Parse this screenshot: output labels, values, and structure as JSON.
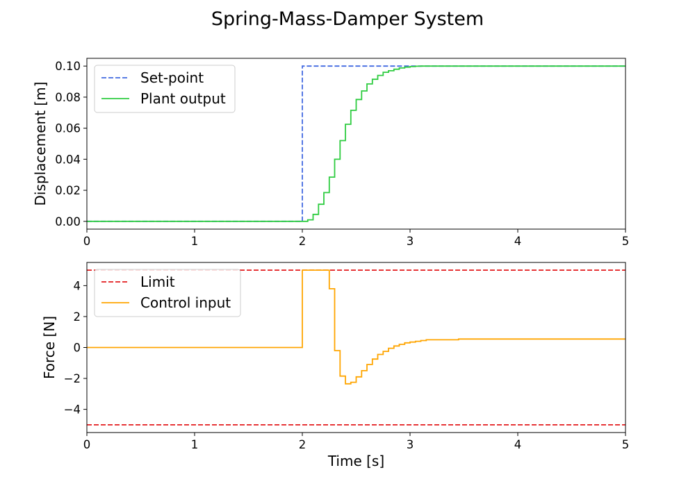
{
  "figure": {
    "title": "Spring-Mass-Damper System"
  },
  "chart_data": [
    {
      "type": "line",
      "id": "top",
      "xlabel": "",
      "ylabel": "Displacement [m]",
      "xlim": [
        0,
        5
      ],
      "ylim": [
        -0.005,
        0.105
      ],
      "xticks": [
        0,
        1,
        2,
        3,
        4,
        5
      ],
      "xtick_labels": [
        "0",
        "1",
        "2",
        "3",
        "4",
        "5"
      ],
      "yticks": [
        0,
        0.02,
        0.04,
        0.06,
        0.08,
        0.1
      ],
      "ytick_labels": [
        "0.00",
        "0.02",
        "0.04",
        "0.06",
        "0.08",
        "0.10"
      ],
      "grid": false,
      "legend": "upper left",
      "series": [
        {
          "name": "Set-point",
          "color": "#4169e1",
          "style": "dashed",
          "step": true,
          "x": [
            0,
            2.0,
            5.0
          ],
          "y": [
            0,
            0.1,
            0.1
          ]
        },
        {
          "name": "Plant output",
          "color": "#2ecc40",
          "style": "solid",
          "step": true,
          "x": [
            0,
            2.05,
            2.1,
            2.15,
            2.2,
            2.25,
            2.3,
            2.35,
            2.4,
            2.45,
            2.5,
            2.55,
            2.6,
            2.65,
            2.7,
            2.75,
            2.8,
            2.85,
            2.9,
            2.95,
            3.0,
            3.05,
            3.1,
            3.2,
            3.3,
            5.0
          ],
          "y": [
            0,
            0.001,
            0.0045,
            0.011,
            0.0185,
            0.0285,
            0.04,
            0.052,
            0.0625,
            0.0715,
            0.0785,
            0.084,
            0.0885,
            0.0915,
            0.094,
            0.096,
            0.097,
            0.098,
            0.0988,
            0.0993,
            0.0997,
            0.0999,
            0.1,
            0.1,
            0.1,
            0.1
          ]
        }
      ]
    },
    {
      "type": "line",
      "id": "bottom",
      "xlabel": "Time [s]",
      "ylabel": "Force [N]",
      "xlim": [
        0,
        5
      ],
      "ylim": [
        -5.5,
        5.5
      ],
      "xticks": [
        0,
        1,
        2,
        3,
        4,
        5
      ],
      "xtick_labels": [
        "0",
        "1",
        "2",
        "3",
        "4",
        "5"
      ],
      "yticks": [
        -4,
        -2,
        0,
        2,
        4
      ],
      "ytick_labels": [
        "−4",
        "−2",
        "0",
        "2",
        "4"
      ],
      "grid": false,
      "legend": "upper left",
      "series": [
        {
          "name": "Limit",
          "color": "#e31a1c",
          "style": "dashed",
          "step": false,
          "x": [
            0,
            5
          ],
          "y": [
            5,
            5
          ]
        },
        {
          "name": "",
          "color": "#e31a1c",
          "style": "dashed",
          "step": false,
          "x": [
            0,
            5
          ],
          "y": [
            -5,
            -5
          ]
        },
        {
          "name": "Control input",
          "color": "#ffa500",
          "style": "solid",
          "step": true,
          "x": [
            0,
            2.0,
            2.25,
            2.3,
            2.35,
            2.4,
            2.45,
            2.5,
            2.55,
            2.6,
            2.65,
            2.7,
            2.75,
            2.8,
            2.85,
            2.9,
            2.95,
            3.0,
            3.05,
            3.1,
            3.15,
            3.45,
            5.0
          ],
          "y": [
            0,
            5.0,
            3.8,
            -0.2,
            -1.85,
            -2.35,
            -2.25,
            -1.9,
            -1.5,
            -1.1,
            -0.75,
            -0.45,
            -0.25,
            -0.05,
            0.1,
            0.2,
            0.3,
            0.35,
            0.4,
            0.45,
            0.5,
            0.55,
            0.55
          ]
        }
      ]
    }
  ]
}
